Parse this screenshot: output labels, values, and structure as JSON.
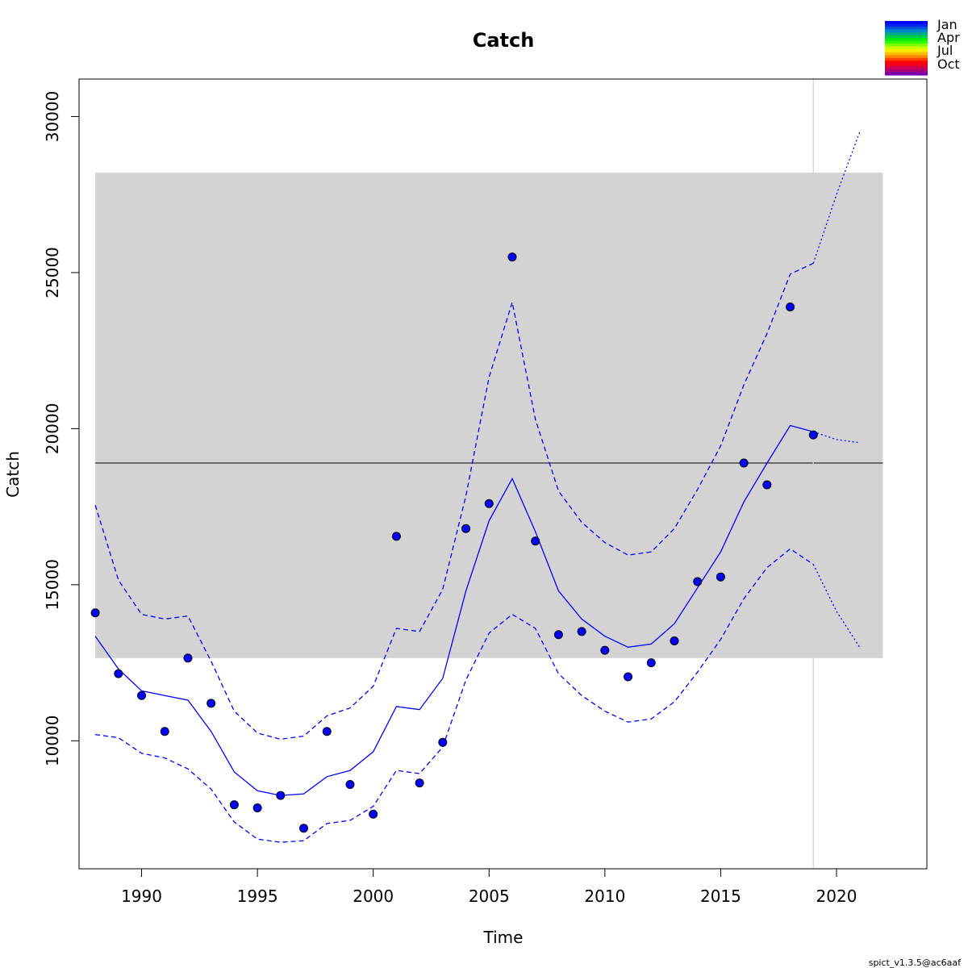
{
  "chart_data": {
    "type": "line",
    "title": "Catch",
    "xlabel": "Time",
    "ylabel": "Catch",
    "xlim": [
      1987.3,
      2023.9
    ],
    "ylim": [
      5900,
      31200
    ],
    "x_ticks": [
      1990,
      1995,
      2000,
      2005,
      2010,
      2015,
      2020
    ],
    "y_ticks": [
      10000,
      15000,
      20000,
      25000,
      30000
    ],
    "grid": false,
    "reference_band": {
      "x": [
        1988,
        2022
      ],
      "y": [
        12650,
        28200
      ],
      "color": "#d3d3d3"
    },
    "reference_line": {
      "y": 18900,
      "color": "#000000"
    },
    "vertical_line": {
      "x": 2019,
      "color": "#d3d3d3"
    },
    "series": [
      {
        "role": "estimate",
        "style": "solid",
        "color": "#0000ff",
        "x": [
          1988,
          1989,
          1990,
          1991,
          1992,
          1993,
          1994,
          1995,
          1996,
          1997,
          1998,
          1999,
          2000,
          2001,
          2002,
          2003,
          2004,
          2005,
          2006,
          2007,
          2008,
          2009,
          2010,
          2011,
          2012,
          2013,
          2014,
          2015,
          2016,
          2017,
          2018,
          2019
        ],
        "values": [
          13350,
          12300,
          11600,
          11450,
          11300,
          10300,
          9000,
          8400,
          8250,
          8300,
          8850,
          9050,
          9650,
          11100,
          11000,
          12000,
          14800,
          17050,
          18400,
          16700,
          14800,
          13900,
          13350,
          13000,
          13100,
          13750,
          14900,
          16050,
          17650,
          18900,
          20100,
          19900
        ]
      },
      {
        "role": "upper-ci",
        "style": "dashed",
        "color": "#0000ff",
        "x": [
          1988,
          1989,
          1990,
          1991,
          1992,
          1993,
          1994,
          1995,
          1996,
          1997,
          1998,
          1999,
          2000,
          2001,
          2002,
          2003,
          2004,
          2005,
          2006,
          2007,
          2008,
          2009,
          2010,
          2011,
          2012,
          2013,
          2014,
          2015,
          2016,
          2017,
          2018,
          2019
        ],
        "values": [
          17550,
          15150,
          14050,
          13900,
          14000,
          12550,
          10950,
          10250,
          10050,
          10150,
          10800,
          11050,
          11750,
          13600,
          13500,
          14850,
          17850,
          21650,
          24050,
          20300,
          18000,
          17000,
          16350,
          15950,
          16050,
          16800,
          18050,
          19450,
          21400,
          23050,
          24950,
          25300
        ]
      },
      {
        "role": "lower-ci",
        "style": "dashed",
        "color": "#0000ff",
        "x": [
          1988,
          1989,
          1990,
          1991,
          1992,
          1993,
          1994,
          1995,
          1996,
          1997,
          1998,
          1999,
          2000,
          2001,
          2002,
          2003,
          2004,
          2005,
          2006,
          2007,
          2008,
          2009,
          2010,
          2011,
          2012,
          2013,
          2014,
          2015,
          2016,
          2017,
          2018,
          2019
        ],
        "values": [
          10200,
          10100,
          9600,
          9450,
          9100,
          8450,
          7400,
          6850,
          6750,
          6800,
          7350,
          7450,
          7900,
          9050,
          8950,
          9800,
          11950,
          13450,
          14050,
          13600,
          12150,
          11450,
          10950,
          10600,
          10700,
          11250,
          12200,
          13250,
          14550,
          15550,
          16150,
          15650
        ]
      },
      {
        "role": "forecast-estimate",
        "style": "dotted",
        "color": "#0000ff",
        "x": [
          2019,
          2020,
          2021
        ],
        "values": [
          19900,
          19650,
          19550
        ]
      },
      {
        "role": "forecast-upper-ci",
        "style": "dotted",
        "color": "#0000ff",
        "x": [
          2019,
          2020,
          2021
        ],
        "values": [
          25300,
          27500,
          29500
        ]
      },
      {
        "role": "forecast-lower-ci",
        "style": "dotted",
        "color": "#0000ff",
        "x": [
          2019,
          2020,
          2021
        ],
        "values": [
          15650,
          14150,
          13000
        ]
      }
    ],
    "observations": {
      "color": "#0000ff",
      "x": [
        1988,
        1989,
        1990,
        1991,
        1992,
        1993,
        1994,
        1995,
        1996,
        1997,
        1998,
        1999,
        2000,
        2001,
        2002,
        2003,
        2004,
        2005,
        2006,
        2007,
        2008,
        2009,
        2010,
        2011,
        2012,
        2013,
        2014,
        2015,
        2016,
        2017,
        2018,
        2019
      ],
      "values": [
        14100,
        12150,
        11450,
        10300,
        12650,
        11200,
        7950,
        7850,
        8250,
        7200,
        10300,
        8600,
        7650,
        16550,
        8650,
        9950,
        16800,
        17600,
        25500,
        16400,
        13400,
        13500,
        12900,
        12050,
        12500,
        13200,
        15100,
        15250,
        18900,
        18200,
        23900,
        19800
      ]
    },
    "legend": {
      "placement": "top-right",
      "labels": [
        "Jan",
        "Apr",
        "Jul",
        "Oct"
      ],
      "colors": [
        "#0000ff",
        "#0022ee",
        "#0055dd",
        "#0088cc",
        "#00aa88",
        "#00cc44",
        "#00ee11",
        "#33ff00",
        "#88ff00",
        "#ccff00",
        "#ffee00",
        "#ffbb00",
        "#ff8800",
        "#ff4400",
        "#ff0000",
        "#ee0022",
        "#cc0055",
        "#aa0077",
        "#7700aa"
      ]
    }
  },
  "footer": {
    "version": "spict_v1.3.5@ac6aaf"
  }
}
